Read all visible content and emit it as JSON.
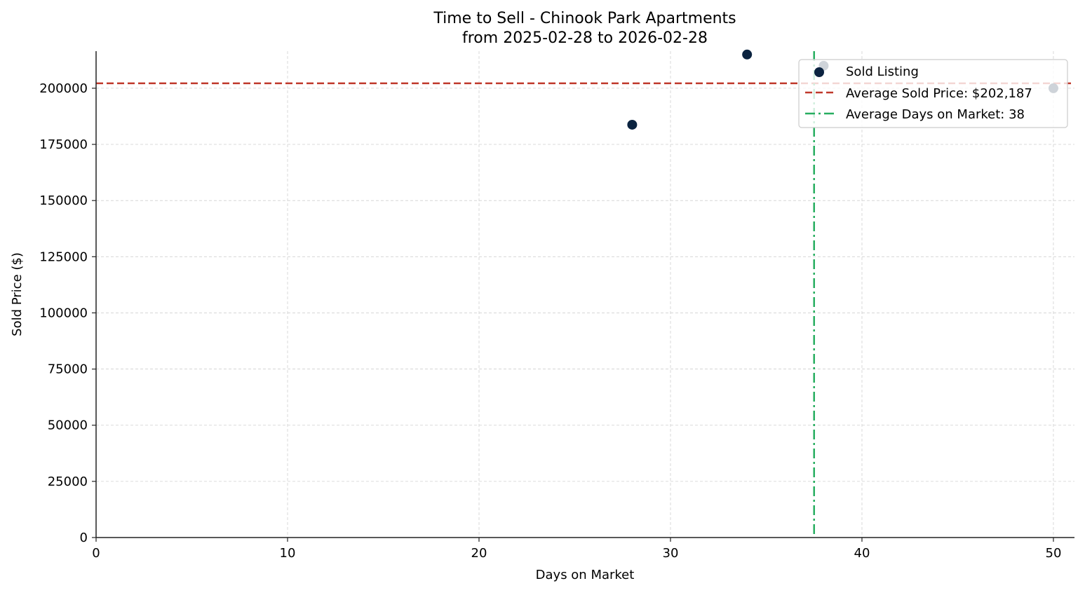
{
  "chart_data": {
    "type": "scatter",
    "title": "Time to Sell - Chinook Park Apartments",
    "subtitle": "from 2025-02-28 to 2026-02-28",
    "xlabel": "Days on Market",
    "ylabel": "Sold Price ($)",
    "xlim": [
      0,
      51.1
    ],
    "ylim": [
      0,
      216500
    ],
    "xticks": [
      0,
      10,
      20,
      30,
      40,
      50
    ],
    "yticks": [
      0,
      25000,
      50000,
      75000,
      100000,
      125000,
      150000,
      175000,
      200000
    ],
    "grid": true,
    "legend_position": "upper right",
    "series": [
      {
        "name": "Sold Listing",
        "type": "scatter",
        "color": "#0b2340",
        "x": [
          28,
          34,
          38,
          50
        ],
        "y": [
          183750,
          215000,
          210000,
          200000
        ]
      }
    ],
    "reference_lines": [
      {
        "name": "Average Sold Price: $202,187",
        "orientation": "horizontal",
        "value": 202187,
        "style": "dashed",
        "color": "#c0392b"
      },
      {
        "name": "Average Days on Market: 38",
        "orientation": "vertical",
        "value": 37.5,
        "style": "dashdot",
        "color": "#27ae60"
      }
    ],
    "legend": [
      "Sold Listing",
      "Average Sold Price: $202,187",
      "Average Days on Market: 38"
    ]
  }
}
